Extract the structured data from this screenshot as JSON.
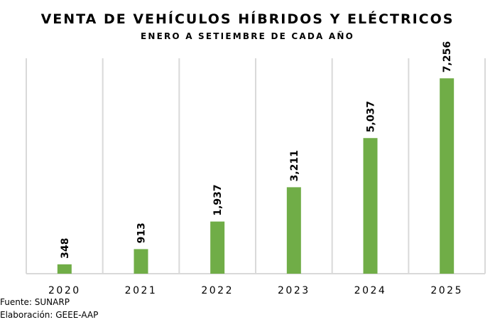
{
  "chart_data": {
    "type": "bar",
    "title": "VENTA DE VEHÍCULOS HÍBRIDOS Y ELÉCTRICOS",
    "subtitle": "ENERO A SETIEMBRE DE CADA AÑO",
    "categories": [
      "2020",
      "2021",
      "2022",
      "2023",
      "2024",
      "2025"
    ],
    "values": [
      348,
      913,
      1937,
      3211,
      5037,
      7256
    ],
    "data_labels": [
      "348",
      "913",
      "1,937",
      "3,211",
      "5,037",
      "7,256"
    ],
    "xlabel": "",
    "ylabel": "",
    "ylim": [
      0,
      8000
    ],
    "grid": "vertical category separators",
    "legend": "none",
    "bar_color": "#70ad47",
    "grid_color": "#d9d9d9"
  },
  "footnotes": {
    "source": "Fuente: SUNARP",
    "author": "Elaboración: GEEE-AAP"
  }
}
